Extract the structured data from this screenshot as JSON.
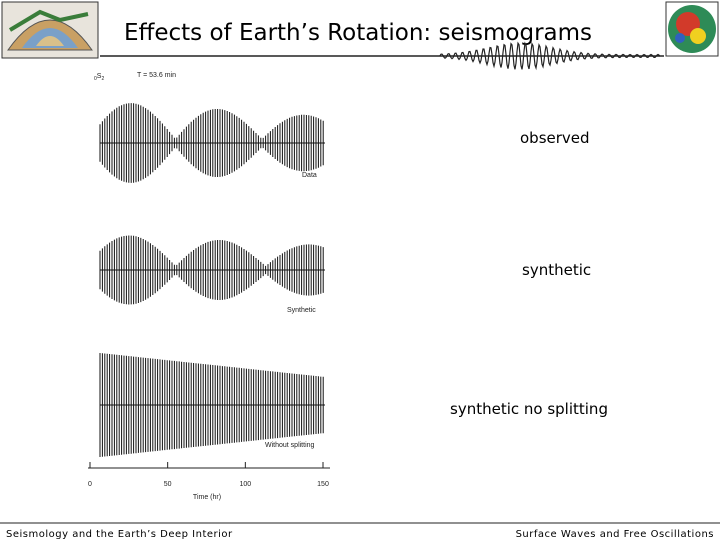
{
  "header": {
    "title": "Effects of Earth’s Rotation: seismograms"
  },
  "figure": {
    "period": "T = 53.6 min",
    "mode": {
      "overtone": "0",
      "type": "S",
      "degree": "2"
    },
    "traces": [
      {
        "label": "Data",
        "caption": "observed"
      },
      {
        "label": "Synthetic",
        "caption": "synthetic"
      },
      {
        "label": "Without splitting",
        "caption": "synthetic no splitting"
      }
    ],
    "axis": {
      "ticks": [
        0,
        50,
        100,
        150
      ],
      "label": "Time (hr)"
    }
  },
  "footer": {
    "left": "Seismology and the Earth’s Deep Interior",
    "right": "Surface Waves and Free Oscillations"
  }
}
